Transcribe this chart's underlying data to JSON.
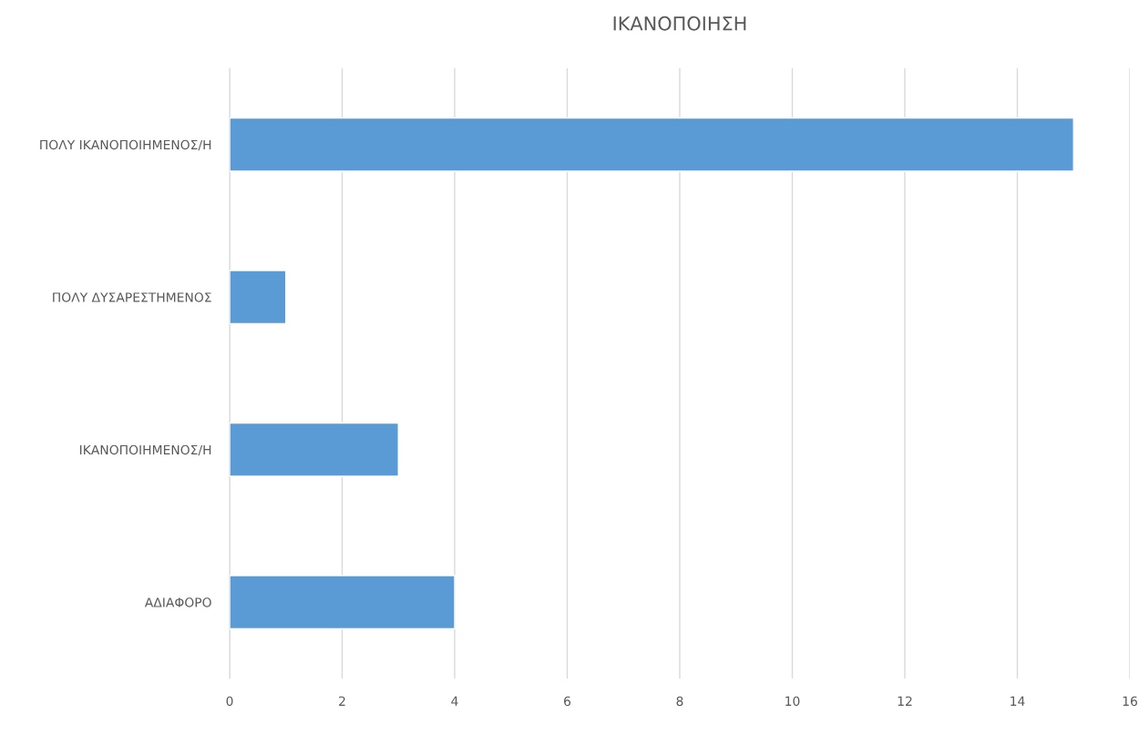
{
  "chart_data": {
    "type": "bar",
    "orientation": "horizontal",
    "title": "ΙΚΑΝΟΠΟΙΗΣΗ",
    "categories": [
      "ΠΟΛΥ ΙΚΑΝΟΠΟΙΗΜΕΝΟΣ/Η",
      "ΠΟΛΥ ΔΥΣΑΡΕΣΤΗΜΕΝΟΣ",
      "ΙΚΑΝΟΠΟΙΗΜΕΝΟΣ/Η",
      "ΑΔΙΑΦΟΡΟ"
    ],
    "values": [
      15,
      1,
      3,
      4
    ],
    "color": "#5b9bd5",
    "xlim": [
      0,
      16
    ],
    "xticks": [
      0,
      2,
      4,
      6,
      8,
      10,
      12,
      14,
      16
    ],
    "grid": "x",
    "legend": false
  }
}
